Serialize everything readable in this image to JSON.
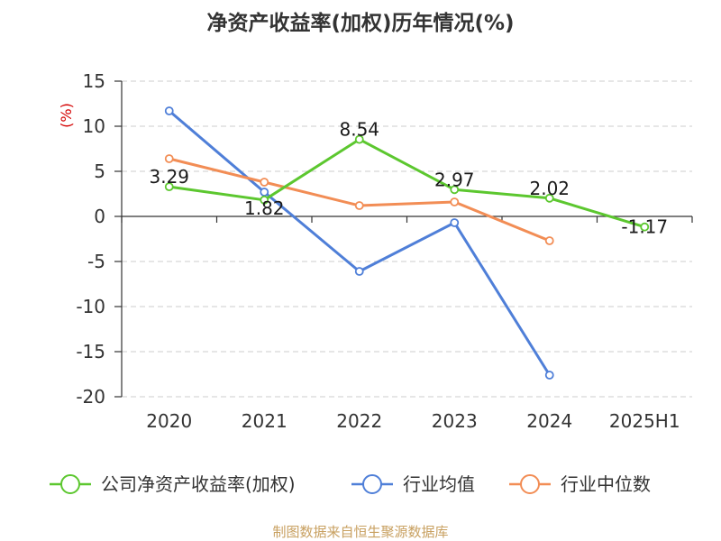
{
  "chart_data": {
    "type": "line",
    "title": "净资产收益率(加权)历年情况(%)",
    "ylabel": "(%)",
    "categories": [
      "2020",
      "2021",
      "2022",
      "2023",
      "2024",
      "2025H1"
    ],
    "yticks": [
      "15",
      "10",
      "5",
      "0",
      "-5",
      "-10",
      "-15",
      "-20"
    ],
    "ylim": [
      -20,
      15
    ],
    "grid": true,
    "legend_position": "bottom",
    "series": [
      {
        "name": "公司净资产收益率(加权)",
        "color": "#5cc72f",
        "values": [
          3.29,
          1.82,
          8.54,
          2.97,
          2.02,
          -1.17
        ],
        "labels": [
          "3.29",
          "1.82",
          "8.54",
          "2.97",
          "2.02",
          "-1.17"
        ]
      },
      {
        "name": "行业均值",
        "color": "#4f7fd8",
        "values": [
          11.7,
          2.7,
          -6.1,
          -0.7,
          -17.6,
          null
        ]
      },
      {
        "name": "行业中位数",
        "color": "#f28d55",
        "values": [
          6.4,
          3.8,
          1.2,
          1.6,
          -2.7,
          null
        ]
      }
    ]
  },
  "footer": "制图数据来自恒生聚源数据库"
}
